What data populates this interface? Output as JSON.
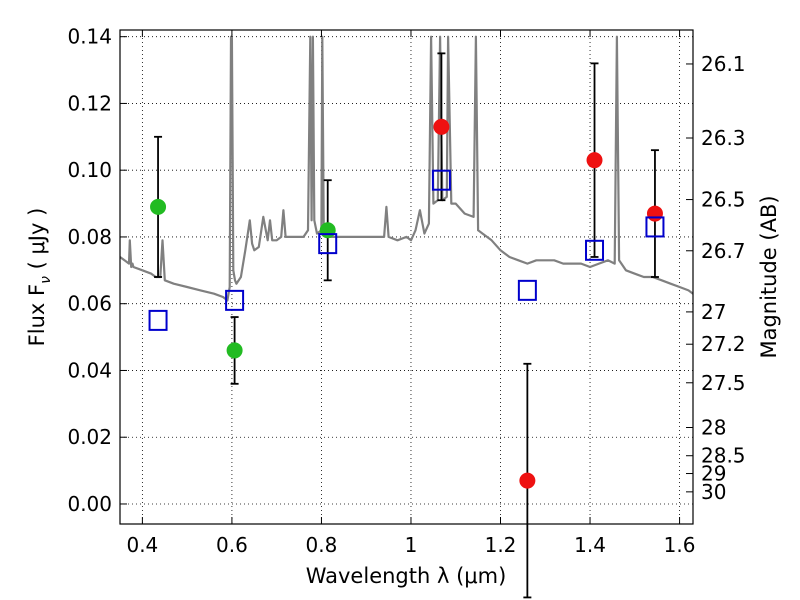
{
  "chart_data": {
    "type": "scatter",
    "xlabel": "Wavelength  λ (μm)",
    "ylabel": "Flux  F",
    "ylabel_subscript": "ν",
    "ylabel_unit": " ( μJy )",
    "y2label": "Magnitude (AB)",
    "xlim": [
      0.35,
      1.63
    ],
    "ylim": [
      -0.006,
      0.142
    ],
    "grid": true,
    "x_ticks": [
      0.4,
      0.6,
      0.8,
      1.0,
      1.2,
      1.4,
      1.6
    ],
    "x_tick_labels": [
      "0.4",
      "0.6",
      "0.8",
      "1",
      "1.2",
      "1.4",
      "1.6"
    ],
    "y_ticks": [
      0.0,
      0.02,
      0.04,
      0.06,
      0.08,
      0.1,
      0.12,
      0.14
    ],
    "y_tick_labels": [
      "0.00",
      "0.02",
      "0.04",
      "0.06",
      "0.08",
      "0.10",
      "0.12",
      "0.14"
    ],
    "mag_ticks": [
      {
        "label": "26.1",
        "mag": 26.1
      },
      {
        "label": "26.3",
        "mag": 26.3
      },
      {
        "label": "26.5",
        "mag": 26.5
      },
      {
        "label": "26.7",
        "mag": 26.7
      },
      {
        "label": "27",
        "mag": 27.0
      },
      {
        "label": "27.2",
        "mag": 27.2
      },
      {
        "label": "27.5",
        "mag": 27.5
      },
      {
        "label": "28",
        "mag": 28.0
      },
      {
        "label": "28.5",
        "mag": 28.5
      },
      {
        "label": "29",
        "mag": 29.0
      },
      {
        "label": "30",
        "mag": 30.0
      }
    ],
    "series": [
      {
        "name": "observed (green)",
        "color": "#22bb22",
        "points": [
          {
            "x": 0.435,
            "y": 0.089,
            "ylo": 0.068,
            "yhi": 0.11
          },
          {
            "x": 0.606,
            "y": 0.046,
            "ylo": 0.036,
            "yhi": 0.056
          },
          {
            "x": 0.814,
            "y": 0.082,
            "ylo": 0.067,
            "yhi": 0.097
          }
        ]
      },
      {
        "name": "observed (red)",
        "color": "#ee1111",
        "points": [
          {
            "x": 1.068,
            "y": 0.113,
            "ylo": 0.091,
            "yhi": 0.135
          },
          {
            "x": 1.26,
            "y": 0.007,
            "ylo": -0.028,
            "yhi": 0.042
          },
          {
            "x": 1.41,
            "y": 0.103,
            "ylo": 0.074,
            "yhi": 0.132
          },
          {
            "x": 1.545,
            "y": 0.087,
            "ylo": 0.068,
            "yhi": 0.106
          }
        ]
      },
      {
        "name": "model photometry",
        "color": "#0000cc",
        "points": [
          {
            "x": 0.435,
            "y": 0.055
          },
          {
            "x": 0.606,
            "y": 0.061
          },
          {
            "x": 0.814,
            "y": 0.078
          },
          {
            "x": 1.068,
            "y": 0.097
          },
          {
            "x": 1.26,
            "y": 0.064
          },
          {
            "x": 1.41,
            "y": 0.076
          },
          {
            "x": 1.545,
            "y": 0.083
          }
        ]
      },
      {
        "name": "model spectrum",
        "color": "#808080",
        "x": [
          0.35,
          0.36,
          0.37,
          0.372,
          0.375,
          0.378,
          0.38,
          0.4,
          0.42,
          0.43,
          0.44,
          0.445,
          0.45,
          0.47,
          0.5,
          0.53,
          0.56,
          0.58,
          0.59,
          0.595,
          0.598,
          0.6,
          0.603,
          0.607,
          0.61,
          0.62,
          0.63,
          0.64,
          0.645,
          0.65,
          0.66,
          0.67,
          0.68,
          0.685,
          0.69,
          0.7,
          0.71,
          0.715,
          0.72,
          0.74,
          0.76,
          0.77,
          0.775,
          0.778,
          0.781,
          0.784,
          0.79,
          0.8,
          0.802,
          0.805,
          0.81,
          0.82,
          0.84,
          0.86,
          0.88,
          0.9,
          0.92,
          0.94,
          0.945,
          0.95,
          0.97,
          0.99,
          1.0,
          1.01,
          1.02,
          1.03,
          1.04,
          1.045,
          1.05,
          1.06,
          1.065,
          1.07,
          1.08,
          1.083,
          1.09,
          1.1,
          1.12,
          1.14,
          1.145,
          1.15,
          1.16,
          1.18,
          1.2,
          1.22,
          1.24,
          1.26,
          1.28,
          1.3,
          1.32,
          1.34,
          1.36,
          1.38,
          1.4,
          1.42,
          1.44,
          1.455,
          1.46,
          1.465,
          1.47,
          1.48,
          1.5,
          1.52,
          1.54,
          1.56,
          1.58,
          1.6,
          1.62,
          1.63
        ],
        "y": [
          0.074,
          0.073,
          0.072,
          0.079,
          0.071,
          0.072,
          0.071,
          0.07,
          0.069,
          0.068,
          0.068,
          0.079,
          0.067,
          0.066,
          0.065,
          0.064,
          0.063,
          0.062,
          0.061,
          0.065,
          0.14,
          0.14,
          0.07,
          0.067,
          0.066,
          0.068,
          0.076,
          0.085,
          0.078,
          0.076,
          0.077,
          0.086,
          0.079,
          0.085,
          0.079,
          0.079,
          0.08,
          0.088,
          0.08,
          0.08,
          0.08,
          0.082,
          0.14,
          0.085,
          0.14,
          0.085,
          0.081,
          0.082,
          0.14,
          0.084,
          0.082,
          0.08,
          0.08,
          0.08,
          0.08,
          0.08,
          0.08,
          0.08,
          0.089,
          0.08,
          0.079,
          0.08,
          0.079,
          0.082,
          0.088,
          0.081,
          0.084,
          0.14,
          0.09,
          0.091,
          0.14,
          0.091,
          0.092,
          0.14,
          0.09,
          0.09,
          0.087,
          0.086,
          0.14,
          0.082,
          0.081,
          0.079,
          0.076,
          0.074,
          0.073,
          0.072,
          0.073,
          0.073,
          0.073,
          0.072,
          0.072,
          0.072,
          0.071,
          0.072,
          0.073,
          0.072,
          0.14,
          0.073,
          0.072,
          0.07,
          0.069,
          0.068,
          0.068,
          0.067,
          0.066,
          0.065,
          0.064,
          0.063
        ]
      }
    ]
  }
}
